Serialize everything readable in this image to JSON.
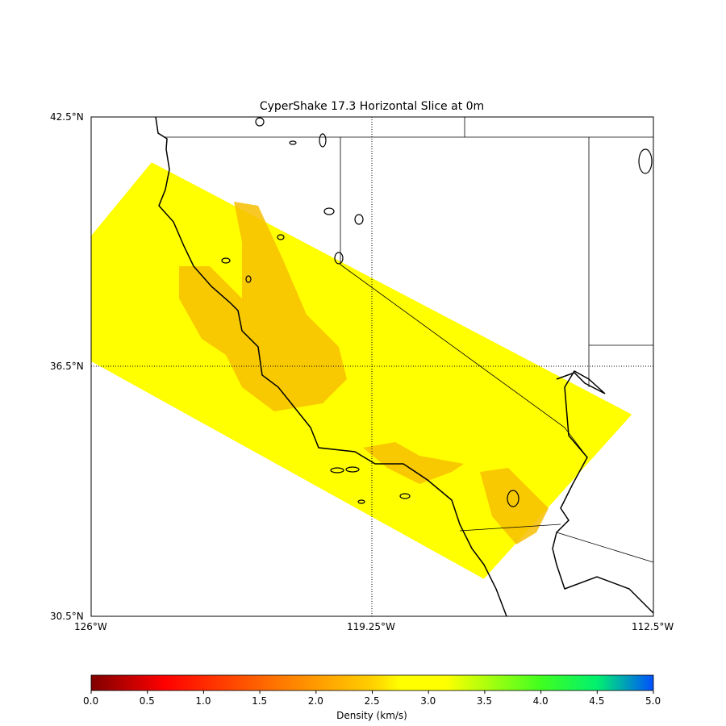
{
  "chart_data": {
    "type": "heatmap",
    "title": "CyperShake 17.3 Horizontal Slice at 0m",
    "projection": "cylindrical",
    "xlim": [
      -126,
      -112.5
    ],
    "ylim": [
      30.5,
      42.5
    ],
    "x_ticks": [
      -126,
      -119.25,
      -112.5
    ],
    "x_tick_labels": [
      "126°W",
      "119.25°W",
      "112.5°W"
    ],
    "y_ticks": [
      30.5,
      36.5,
      42.5
    ],
    "y_tick_labels": [
      "30.5°N",
      "36.5°N",
      "42.5°N"
    ],
    "graticule": "dotted at 119.25°W and 36.5°N",
    "model_region_corners_lonlat": [
      [
        -124.55,
        41.41
      ],
      [
        -113.02,
        35.35
      ],
      [
        -116.57,
        31.4
      ],
      [
        -127.7,
        37.57
      ]
    ],
    "dominant_value": 2.7,
    "low_value_zones": "~2.0–2.3 along Bay Area, Central Valley, LA basin and Salton Trough",
    "colorbar": {
      "label": "Density (km/s)",
      "range": [
        0,
        5
      ],
      "ticks": [
        "0.0",
        "0.5",
        "1.0",
        "1.5",
        "2.0",
        "2.5",
        "3.0",
        "3.5",
        "4.0",
        "4.5",
        "5.0"
      ],
      "colormap": [
        "#800000",
        "#ff0000",
        "#ff8000",
        "#ffff00",
        "#00ff80",
        "#0040ff"
      ],
      "placement": "bottom"
    },
    "colors": {
      "region": "#ffff00",
      "low_zone": "#f5b800",
      "coast": "#000000"
    }
  }
}
